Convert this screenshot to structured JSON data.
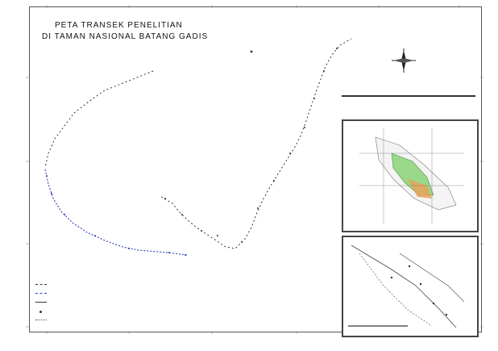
{
  "map": {
    "title_line1": "PETA TRANSEK PENELITIAN",
    "title_line2": "DI TAMAN NASIONAL BATANG GADIS"
  },
  "colors": {
    "frame": "#555555",
    "transect_dark": "#333333",
    "transect_blue": "#2b3fb8",
    "inset_green": "#9bd98a",
    "inset_orange": "#e8a15a"
  },
  "icons": [
    "north-arrow-icon",
    "compass-rose-icon"
  ]
}
